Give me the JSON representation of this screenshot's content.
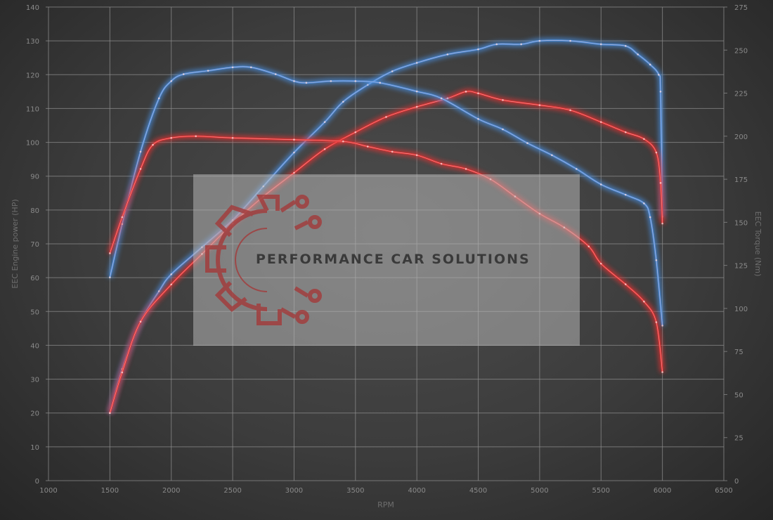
{
  "chart_data": {
    "type": "line",
    "xlabel": "RPM",
    "ylabel": "EEC Engine power (HP)",
    "ylabel_right": "EEC Torque (Nm)",
    "xlim": [
      1000,
      6500
    ],
    "ylim": [
      0,
      140
    ],
    "ylim_right": [
      0,
      275
    ],
    "xticks": [
      1000,
      1500,
      2000,
      2500,
      3000,
      3500,
      4000,
      4500,
      5000,
      5500,
      6000,
      6500
    ],
    "yticks": [
      0,
      10,
      20,
      30,
      40,
      50,
      60,
      70,
      80,
      90,
      100,
      110,
      120,
      130,
      140
    ],
    "yticks_right": [
      0,
      25,
      50,
      75,
      100,
      125,
      150,
      175,
      200,
      225,
      250,
      275
    ],
    "grid": true,
    "colors": {
      "blue": "#4a90e2",
      "red": "#e83030"
    },
    "series": [
      {
        "axis": "left",
        "color": "blue",
        "x": [
          1500,
          1600,
          1750,
          1900,
          2000,
          2250,
          2500,
          2750,
          3000,
          3250,
          3400,
          3600,
          3800,
          4000,
          4250,
          4500,
          4650,
          4850,
          5000,
          5250,
          5500,
          5700,
          5800,
          5900,
          5970,
          5985,
          6000
        ],
        "y": [
          20,
          33,
          47,
          56,
          61,
          69,
          77,
          87,
          97,
          106,
          112,
          117,
          121,
          123.5,
          126,
          127.5,
          129,
          129,
          130,
          130,
          129,
          128.5,
          126,
          123,
          120,
          115,
          78
        ]
      },
      {
        "axis": "left",
        "color": "red",
        "x": [
          1500,
          1600,
          1750,
          2000,
          2250,
          2500,
          2750,
          3000,
          3250,
          3500,
          3750,
          4000,
          4250,
          4400,
          4500,
          4700,
          5000,
          5250,
          5500,
          5700,
          5850,
          5950,
          5985,
          6000
        ],
        "y": [
          20,
          32,
          47,
          58,
          67,
          76,
          84,
          91,
          98,
          103,
          107.5,
          110.5,
          113,
          115,
          114.5,
          112.5,
          111,
          109.5,
          106,
          103,
          101,
          97,
          88,
          76
        ]
      },
      {
        "axis": "right",
        "color": "blue",
        "x": [
          1500,
          1600,
          1750,
          1900,
          2000,
          2100,
          2300,
          2500,
          2650,
          2850,
          3000,
          3100,
          3300,
          3500,
          3700,
          4000,
          4200,
          4500,
          4700,
          4900,
          5100,
          5300,
          5500,
          5700,
          5850,
          5900,
          5950,
          6000
        ],
        "y": [
          118,
          149,
          191,
          222,
          232,
          236,
          238,
          240,
          240,
          236,
          232,
          231,
          232,
          232,
          231,
          226,
          222,
          210,
          204,
          196,
          189,
          181,
          172,
          166,
          161,
          153,
          128,
          90
        ]
      },
      {
        "axis": "right",
        "color": "red",
        "x": [
          1500,
          1600,
          1750,
          1850,
          2000,
          2200,
          2500,
          3000,
          3400,
          3600,
          3800,
          4000,
          4200,
          4400,
          4600,
          4800,
          5000,
          5200,
          5400,
          5500,
          5700,
          5850,
          5950,
          6000
        ],
        "y": [
          132,
          153,
          181,
          195,
          199,
          200,
          199,
          198,
          197,
          194,
          191,
          189,
          184,
          181,
          175,
          165,
          155,
          147,
          136,
          126,
          114,
          104,
          92,
          63
        ]
      }
    ]
  },
  "watermark": {
    "text": "PERFORMANCE CAR SOLUTIONS"
  }
}
